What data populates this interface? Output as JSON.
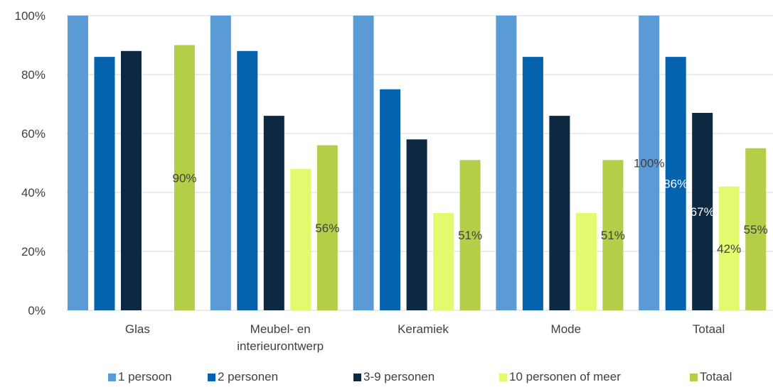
{
  "chart_data": {
    "type": "bar",
    "categories": [
      [
        "Glas"
      ],
      [
        "Meubel- en",
        "interieurontwerp"
      ],
      [
        "Keramiek"
      ],
      [
        "Mode"
      ],
      [
        "Totaal"
      ]
    ],
    "series": [
      {
        "name": "1 persoon",
        "color": "#5B9BD5",
        "values": [
          100,
          100,
          100,
          100,
          100
        ]
      },
      {
        "name": "2 personen",
        "color": "#0563AD",
        "values": [
          86,
          88,
          75,
          86,
          86
        ]
      },
      {
        "name": "3-9 personen",
        "color": "#0D2840",
        "values": [
          88,
          66,
          58,
          66,
          67
        ]
      },
      {
        "name": "10 personen of meer",
        "color": "#E2FB6E",
        "values": [
          null,
          48,
          33,
          33,
          42
        ]
      },
      {
        "name": "Totaal",
        "color": "#B3CF47",
        "values": [
          90,
          56,
          51,
          51,
          55
        ]
      }
    ],
    "data_labels": [
      {
        "series": 0,
        "category": 4,
        "text": "100%",
        "color": "#404040"
      },
      {
        "series": 1,
        "category": 4,
        "text": "86%",
        "color": "#ffffff"
      },
      {
        "series": 2,
        "category": 4,
        "text": "67%",
        "color": "#ffffff"
      },
      {
        "series": 3,
        "category": 4,
        "text": "42%",
        "color": "#404040"
      },
      {
        "series": 4,
        "category": 0,
        "text": "90%",
        "color": "#404040"
      },
      {
        "series": 4,
        "category": 1,
        "text": "56%",
        "color": "#404040"
      },
      {
        "series": 4,
        "category": 2,
        "text": "51%",
        "color": "#404040"
      },
      {
        "series": 4,
        "category": 3,
        "text": "51%",
        "color": "#404040"
      },
      {
        "series": 4,
        "category": 4,
        "text": "55%",
        "color": "#404040"
      }
    ],
    "y_ticks": [
      "0%",
      "20%",
      "40%",
      "60%",
      "80%",
      "100%"
    ],
    "ylim": [
      0,
      100
    ],
    "grid": true,
    "gridline_color": "#D9D9D9",
    "legend_position": "bottom"
  }
}
